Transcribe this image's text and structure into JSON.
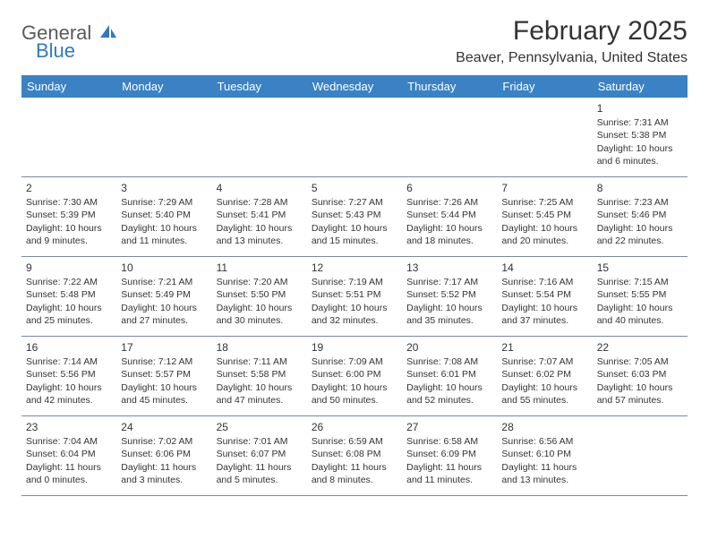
{
  "logo": {
    "general": "General",
    "blue": "Blue"
  },
  "title": "February 2025",
  "location": "Beaver, Pennsylvania, United States",
  "weekdays": [
    "Sunday",
    "Monday",
    "Tuesday",
    "Wednesday",
    "Thursday",
    "Friday",
    "Saturday"
  ],
  "header_bg": "#3a82c4",
  "header_text_color": "#ffffff",
  "text_color": "#333333",
  "logo_icon_color": "#2f79c2",
  "border_color": "#7a8aa0",
  "days": [
    {
      "n": 1,
      "sr": "7:31 AM",
      "ss": "5:38 PM",
      "dl": "10 hours and 6 minutes."
    },
    {
      "n": 2,
      "sr": "7:30 AM",
      "ss": "5:39 PM",
      "dl": "10 hours and 9 minutes."
    },
    {
      "n": 3,
      "sr": "7:29 AM",
      "ss": "5:40 PM",
      "dl": "10 hours and 11 minutes."
    },
    {
      "n": 4,
      "sr": "7:28 AM",
      "ss": "5:41 PM",
      "dl": "10 hours and 13 minutes."
    },
    {
      "n": 5,
      "sr": "7:27 AM",
      "ss": "5:43 PM",
      "dl": "10 hours and 15 minutes."
    },
    {
      "n": 6,
      "sr": "7:26 AM",
      "ss": "5:44 PM",
      "dl": "10 hours and 18 minutes."
    },
    {
      "n": 7,
      "sr": "7:25 AM",
      "ss": "5:45 PM",
      "dl": "10 hours and 20 minutes."
    },
    {
      "n": 8,
      "sr": "7:23 AM",
      "ss": "5:46 PM",
      "dl": "10 hours and 22 minutes."
    },
    {
      "n": 9,
      "sr": "7:22 AM",
      "ss": "5:48 PM",
      "dl": "10 hours and 25 minutes."
    },
    {
      "n": 10,
      "sr": "7:21 AM",
      "ss": "5:49 PM",
      "dl": "10 hours and 27 minutes."
    },
    {
      "n": 11,
      "sr": "7:20 AM",
      "ss": "5:50 PM",
      "dl": "10 hours and 30 minutes."
    },
    {
      "n": 12,
      "sr": "7:19 AM",
      "ss": "5:51 PM",
      "dl": "10 hours and 32 minutes."
    },
    {
      "n": 13,
      "sr": "7:17 AM",
      "ss": "5:52 PM",
      "dl": "10 hours and 35 minutes."
    },
    {
      "n": 14,
      "sr": "7:16 AM",
      "ss": "5:54 PM",
      "dl": "10 hours and 37 minutes."
    },
    {
      "n": 15,
      "sr": "7:15 AM",
      "ss": "5:55 PM",
      "dl": "10 hours and 40 minutes."
    },
    {
      "n": 16,
      "sr": "7:14 AM",
      "ss": "5:56 PM",
      "dl": "10 hours and 42 minutes."
    },
    {
      "n": 17,
      "sr": "7:12 AM",
      "ss": "5:57 PM",
      "dl": "10 hours and 45 minutes."
    },
    {
      "n": 18,
      "sr": "7:11 AM",
      "ss": "5:58 PM",
      "dl": "10 hours and 47 minutes."
    },
    {
      "n": 19,
      "sr": "7:09 AM",
      "ss": "6:00 PM",
      "dl": "10 hours and 50 minutes."
    },
    {
      "n": 20,
      "sr": "7:08 AM",
      "ss": "6:01 PM",
      "dl": "10 hours and 52 minutes."
    },
    {
      "n": 21,
      "sr": "7:07 AM",
      "ss": "6:02 PM",
      "dl": "10 hours and 55 minutes."
    },
    {
      "n": 22,
      "sr": "7:05 AM",
      "ss": "6:03 PM",
      "dl": "10 hours and 57 minutes."
    },
    {
      "n": 23,
      "sr": "7:04 AM",
      "ss": "6:04 PM",
      "dl": "11 hours and 0 minutes."
    },
    {
      "n": 24,
      "sr": "7:02 AM",
      "ss": "6:06 PM",
      "dl": "11 hours and 3 minutes."
    },
    {
      "n": 25,
      "sr": "7:01 AM",
      "ss": "6:07 PM",
      "dl": "11 hours and 5 minutes."
    },
    {
      "n": 26,
      "sr": "6:59 AM",
      "ss": "6:08 PM",
      "dl": "11 hours and 8 minutes."
    },
    {
      "n": 27,
      "sr": "6:58 AM",
      "ss": "6:09 PM",
      "dl": "11 hours and 11 minutes."
    },
    {
      "n": 28,
      "sr": "6:56 AM",
      "ss": "6:10 PM",
      "dl": "11 hours and 13 minutes."
    }
  ],
  "labels": {
    "sunrise": "Sunrise:",
    "sunset": "Sunset:",
    "daylight": "Daylight:"
  },
  "first_weekday_index": 6
}
